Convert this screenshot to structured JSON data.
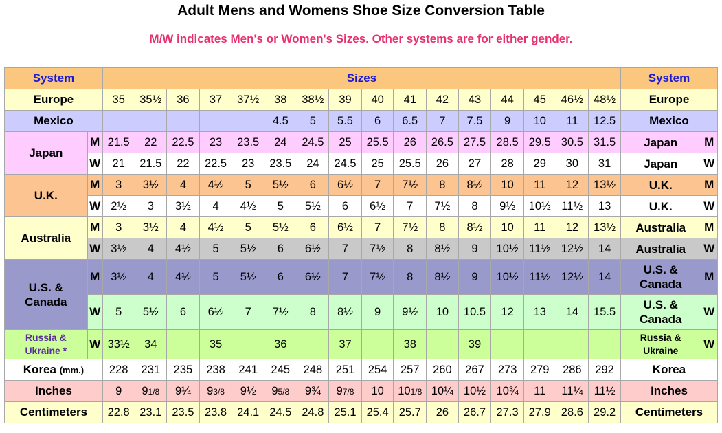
{
  "header": {
    "title": "Adult Mens and Womens Shoe Size Conversion Table",
    "subtitle": "M/W indicates Men's or Women's Sizes. Other systems are for either gender."
  },
  "table": {
    "system_label": "System",
    "sizes_label": "Sizes",
    "europe": {
      "label": "Europe",
      "values": [
        "35",
        "35½",
        "36",
        "37",
        "37½",
        "38",
        "38½",
        "39",
        "40",
        "41",
        "42",
        "43",
        "44",
        "45",
        "46½",
        "48½"
      ]
    },
    "mexico": {
      "label": "Mexico",
      "values": [
        "",
        "",
        "",
        "",
        "",
        "4.5",
        "5",
        "5.5",
        "6",
        "6.5",
        "7",
        "7.5",
        "9",
        "10",
        "11",
        "12.5"
      ]
    },
    "japan": {
      "label": "Japan",
      "m_label": "M",
      "w_label": "W",
      "men": [
        "21.5",
        "22",
        "22.5",
        "23",
        "23.5",
        "24",
        "24.5",
        "25",
        "25.5",
        "26",
        "26.5",
        "27.5",
        "28.5",
        "29.5",
        "30.5",
        "31.5"
      ],
      "women": [
        "21",
        "21.5",
        "22",
        "22.5",
        "23",
        "23.5",
        "24",
        "24.5",
        "25",
        "25.5",
        "26",
        "27",
        "28",
        "29",
        "30",
        "31"
      ]
    },
    "uk": {
      "label": "U.K.",
      "m_label": "M",
      "w_label": "W",
      "men": [
        "3",
        "3½",
        "4",
        "4½",
        "5",
        "5½",
        "6",
        "6½",
        "7",
        "7½",
        "8",
        "8½",
        "10",
        "11",
        "12",
        "13½"
      ],
      "women": [
        "2½",
        "3",
        "3½",
        "4",
        "4½",
        "5",
        "5½",
        "6",
        "6½",
        "7",
        "7½",
        "8",
        "9½",
        "10½",
        "11½",
        "13"
      ]
    },
    "australia": {
      "label": "Australia",
      "m_label": "M",
      "w_label": "W",
      "men": [
        "3",
        "3½",
        "4",
        "4½",
        "5",
        "5½",
        "6",
        "6½",
        "7",
        "7½",
        "8",
        "8½",
        "10",
        "11",
        "12",
        "13½"
      ],
      "women": [
        "3½",
        "4",
        "4½",
        "5",
        "5½",
        "6",
        "6½",
        "7",
        "7½",
        "8",
        "8½",
        "9",
        "10½",
        "11½",
        "12½",
        "14"
      ]
    },
    "us_canada": {
      "label_line1": "U.S. &",
      "label_line2": "Canada",
      "m_label": "M",
      "w_label": "W",
      "men": [
        "3½",
        "4",
        "4½",
        "5",
        "5½",
        "6",
        "6½",
        "7",
        "7½",
        "8",
        "8½",
        "9",
        "10½",
        "11½",
        "12½",
        "14"
      ],
      "women": [
        "5",
        "5½",
        "6",
        "6½",
        "7",
        "7½",
        "8",
        "8½",
        "9",
        "9½",
        "10",
        "10.5",
        "12",
        "13",
        "14",
        "15.5"
      ]
    },
    "russia": {
      "label_line1": "Russia &",
      "label_line2": "Ukraine *",
      "right_line1": "Russia &",
      "right_line2": "Ukraine",
      "w_label": "W",
      "values": [
        "33½",
        "34",
        "",
        "35",
        "",
        "36",
        "",
        "37",
        "",
        "38",
        "",
        "39",
        "",
        "",
        "",
        ""
      ]
    },
    "korea": {
      "label": "Korea",
      "unit": "(mm.)",
      "values": [
        "228",
        "231",
        "235",
        "238",
        "241",
        "245",
        "248",
        "251",
        "254",
        "257",
        "260",
        "267",
        "273",
        "279",
        "286",
        "292"
      ]
    },
    "inches": {
      "label": "Inches",
      "values": [
        "9",
        "91/8",
        "9¼",
        "93/8",
        "9½",
        "95/8",
        "9¾",
        "97/8",
        "10",
        "101/8",
        "10¼",
        "10½",
        "10¾",
        "11",
        "11¼",
        "11½"
      ]
    },
    "centimeters": {
      "label": "Centimeters",
      "values": [
        "22.8",
        "23.1",
        "23.5",
        "23.8",
        "24.1",
        "24.5",
        "24.8",
        "25.1",
        "25.4",
        "25.7",
        "26",
        "26.7",
        "27.3",
        "27.9",
        "28.6",
        "29.2"
      ]
    }
  },
  "colors": {
    "header_bg": "#fbc77e",
    "europe_bg": "#ffffcc",
    "mexico_bg": "#ccccff",
    "japan_bg": "#ffccff",
    "uk_bg": "#fbc491",
    "australia_bg": "#ffffcc",
    "australia_w_bg": "#c9c9c9",
    "us_bg": "#9999cc",
    "us_w_bg": "#ccffcc",
    "russia_bg": "#ccff99",
    "inches_bg": "#ffcccc",
    "cm_bg": "#ffffcc",
    "title_color": "#000000",
    "subtitle_color": "#e8306e",
    "header_text": "#1a1ad6"
  }
}
